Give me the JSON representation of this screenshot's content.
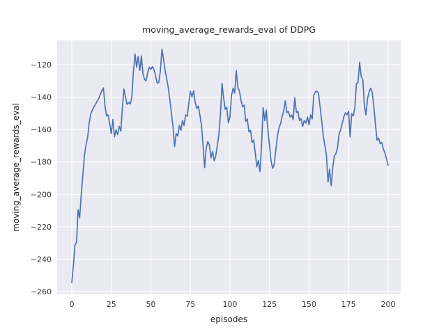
{
  "chart_data": {
    "type": "line",
    "title": "moving_average_rewards_eval of DDPG",
    "xlabel": "episodes",
    "ylabel": "moving_average_rewards_eval",
    "x_ticks": [
      0,
      25,
      50,
      75,
      100,
      125,
      150,
      175,
      200
    ],
    "y_ticks": [
      -120,
      -140,
      -160,
      -180,
      -200,
      -220,
      -240,
      -260
    ],
    "xlim": [
      -9.3,
      208
    ],
    "ylim": [
      -261.7,
      -105
    ],
    "grid": true,
    "legend_position": "none",
    "style": "seaborn-darkgrid",
    "line_color": "#4C72B0",
    "axes_background": "#EAEAF2",
    "gridline_color": "#FFFFFF",
    "series": [
      {
        "name": "moving_average_rewards_eval",
        "x_start": 0,
        "x_step": 1,
        "values": [
          -254.5,
          -244,
          -231.5,
          -229.5,
          -209.5,
          -214.5,
          -200,
          -188,
          -176,
          -169.5,
          -165,
          -156,
          -150.5,
          -148,
          -146,
          -144.5,
          -142.5,
          -141,
          -138.5,
          -136,
          -134.3,
          -145.5,
          -151.6,
          -150.9,
          -156.6,
          -162.5,
          -153.8,
          -164.5,
          -160.2,
          -163.2,
          -158,
          -161,
          -146.6,
          -135,
          -140.2,
          -144.5,
          -143.3,
          -144.2,
          -139.8,
          -124,
          -113.4,
          -121.5,
          -115,
          -123.5,
          -114.6,
          -125.5,
          -129,
          -130,
          -125,
          -121.5,
          -122.8,
          -121.2,
          -123,
          -127,
          -131.4,
          -130.9,
          -124,
          -110.5,
          -116.5,
          -123.6,
          -128.5,
          -134,
          -141.5,
          -150,
          -158,
          -170.5,
          -162.5,
          -164,
          -157.5,
          -160.5,
          -154.5,
          -157.5,
          -151,
          -151.8,
          -144,
          -136.4,
          -139.9,
          -136.1,
          -143,
          -147,
          -145.5,
          -151,
          -157.5,
          -170,
          -183.5,
          -171.5,
          -167.4,
          -169.5,
          -177.5,
          -173.5,
          -179.3,
          -176.5,
          -170,
          -163,
          -151,
          -131.6,
          -140.5,
          -147.5,
          -146.3,
          -155.9,
          -152.5,
          -139,
          -134.5,
          -137.5,
          -123.7,
          -134,
          -136.3,
          -142,
          -146,
          -145,
          -155,
          -153.5,
          -161.5,
          -160.5,
          -168,
          -166.5,
          -174.5,
          -183,
          -179,
          -186,
          -170,
          -146.5,
          -154.5,
          -148,
          -160,
          -170,
          -179.5,
          -184,
          -181.5,
          -172.5,
          -164.5,
          -159,
          -156.5,
          -152,
          -148.5,
          -142.3,
          -149.5,
          -148.8,
          -152.3,
          -151,
          -154,
          -140.3,
          -149.5,
          -148.8,
          -154.5,
          -153.2,
          -158.1,
          -154.5,
          -156,
          -152.3,
          -157,
          -151,
          -153.5,
          -139,
          -136.8,
          -136.3,
          -137.5,
          -146,
          -154.5,
          -164,
          -169.5,
          -176,
          -192.4,
          -184.5,
          -194.6,
          -183.5,
          -176.3,
          -175,
          -171.3,
          -163.1,
          -160.2,
          -156.3,
          -152.1,
          -149.7,
          -150.9,
          -148.8,
          -164.5,
          -150.2,
          -151.6,
          -146.6,
          -131.6,
          -131,
          -118.4,
          -127.3,
          -129,
          -145,
          -151,
          -141,
          -136.6,
          -134.5,
          -137.3,
          -146,
          -156.5,
          -166.5,
          -165.3,
          -168.8,
          -168,
          -172,
          -174.5,
          -178,
          -182
        ]
      }
    ]
  }
}
